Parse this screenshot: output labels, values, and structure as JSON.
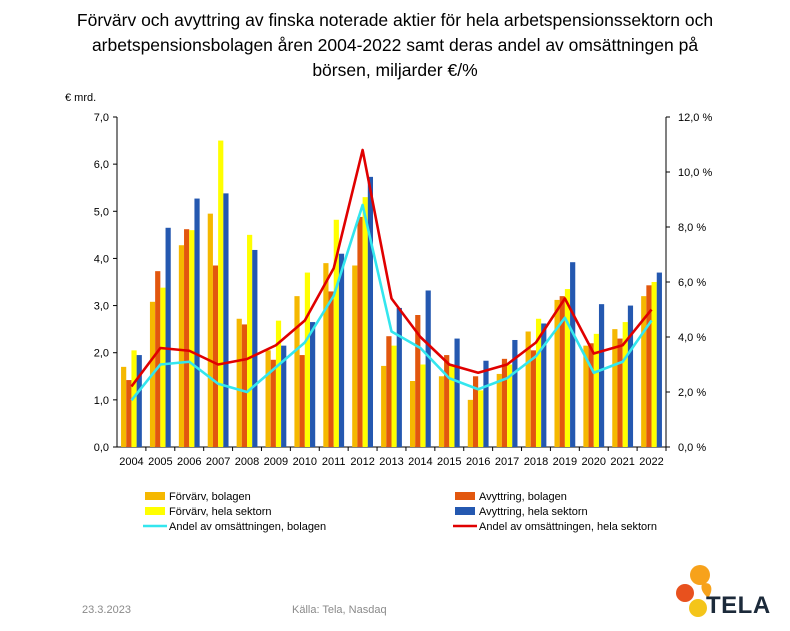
{
  "chart_data": {
    "type": "bar",
    "title_lines": [
      "Förvärv och avyttring av finska noterade aktier för hela arbetspensionssektorn och",
      "arbetspensionsbolagen åren 2004-2022 samt deras andel av omsättningen på",
      "börsen, miljarder €/%"
    ],
    "ylabel": "€ mrd.",
    "ylim": [
      0,
      7
    ],
    "y_ticks": [
      "0,0",
      "1,0",
      "2,0",
      "3,0",
      "4,0",
      "5,0",
      "6,0",
      "7,0"
    ],
    "y2lim": [
      0,
      12
    ],
    "y2_ticks": [
      "0,0 %",
      "2,0 %",
      "4,0 %",
      "6,0 %",
      "8,0 %",
      "10,0 %",
      "12,0 %"
    ],
    "categories": [
      "2004",
      "2005",
      "2006",
      "2007",
      "2008",
      "2009",
      "2010",
      "2011",
      "2012",
      "2013",
      "2014",
      "2015",
      "2016",
      "2017",
      "2018",
      "2019",
      "2020",
      "2021",
      "2022"
    ],
    "grid": false,
    "series": [
      {
        "name": "Förvärv, bolagen",
        "kind": "bar",
        "axis": "left",
        "color": "#f5b800",
        "values": [
          1.7,
          3.08,
          4.28,
          4.95,
          2.72,
          2.05,
          3.2,
          3.9,
          3.85,
          1.72,
          1.4,
          1.5,
          1.0,
          1.55,
          2.45,
          3.12,
          2.15,
          2.5,
          3.2
        ]
      },
      {
        "name": "Avyttring, bolagen",
        "kind": "bar",
        "axis": "left",
        "color": "#e2570e",
        "values": [
          1.42,
          3.73,
          4.62,
          3.85,
          2.6,
          1.85,
          1.95,
          3.3,
          4.88,
          2.35,
          2.8,
          1.95,
          1.5,
          1.87,
          2.05,
          3.2,
          2.2,
          2.3,
          3.43
        ]
      },
      {
        "name": "Förvärv, hela sektorn",
        "kind": "bar",
        "axis": "left",
        "color": "#ffff00",
        "values": [
          2.05,
          3.38,
          4.6,
          6.5,
          4.5,
          2.68,
          3.7,
          4.82,
          5.3,
          2.15,
          1.75,
          1.72,
          1.2,
          1.75,
          2.72,
          3.35,
          2.4,
          2.65,
          3.5
        ]
      },
      {
        "name": "Avyttring, hela sektorn",
        "kind": "bar",
        "axis": "left",
        "color": "#2458b0",
        "values": [
          1.95,
          4.65,
          5.27,
          5.38,
          4.18,
          2.15,
          2.65,
          4.1,
          5.73,
          2.95,
          3.32,
          2.3,
          1.83,
          2.27,
          2.62,
          3.92,
          3.03,
          3.0,
          3.7
        ]
      },
      {
        "name": "Andel av omsättningen, bolagen",
        "kind": "line",
        "axis": "right",
        "color": "#33e6ee",
        "values": [
          1.7,
          3.0,
          3.1,
          2.3,
          2.0,
          2.9,
          3.8,
          5.5,
          8.8,
          4.2,
          3.6,
          2.5,
          2.1,
          2.5,
          3.3,
          4.7,
          2.7,
          3.1,
          4.6
        ]
      },
      {
        "name": "Andel av omsättningen, hela sektorn",
        "kind": "line",
        "axis": "right",
        "color": "#e00000",
        "values": [
          2.2,
          3.6,
          3.5,
          3.0,
          3.2,
          3.7,
          4.6,
          6.5,
          10.8,
          5.4,
          4.0,
          3.0,
          2.7,
          3.0,
          3.8,
          5.4,
          3.4,
          3.7,
          5.0
        ]
      }
    ],
    "legend_position": "bottom"
  },
  "footer": {
    "date": "23.3.2023",
    "source": "Källa: Tela, Nasdaq"
  },
  "logo": {
    "text": "TELA",
    "colors": [
      "#f7a21b",
      "#e8511e",
      "#f4c51a"
    ]
  }
}
